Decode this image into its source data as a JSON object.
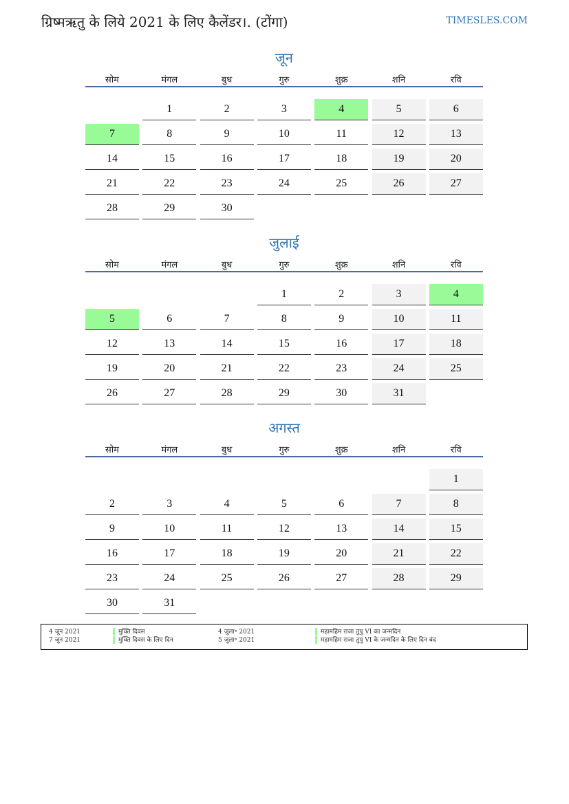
{
  "title": "ग्रिष्मऋतु के लिये 2021 के लिए कैलेंडर।. (टोंगा)",
  "site": "TIMESLES.COM",
  "weekdays": [
    "सोम",
    "मंगल",
    "बुध",
    "गुरु",
    "शुक्र",
    "शनि",
    "रवि"
  ],
  "colors": {
    "holiday": "#98fb98",
    "weekend": "#f2f2f2",
    "accent": "#2e75b6"
  },
  "months": [
    {
      "name": "जून",
      "weeks": [
        [
          null,
          1,
          2,
          3,
          4,
          5,
          6
        ],
        [
          7,
          8,
          9,
          10,
          11,
          12,
          13
        ],
        [
          14,
          15,
          16,
          17,
          18,
          19,
          20
        ],
        [
          21,
          22,
          23,
          24,
          25,
          26,
          27
        ],
        [
          28,
          29,
          30,
          null,
          null,
          null,
          null
        ]
      ],
      "holidays": [
        4,
        7
      ]
    },
    {
      "name": "जुलाई",
      "weeks": [
        [
          null,
          null,
          null,
          1,
          2,
          3,
          4
        ],
        [
          5,
          6,
          7,
          8,
          9,
          10,
          11
        ],
        [
          12,
          13,
          14,
          15,
          16,
          17,
          18
        ],
        [
          19,
          20,
          21,
          22,
          23,
          24,
          25
        ],
        [
          26,
          27,
          28,
          29,
          30,
          31,
          null
        ]
      ],
      "holidays": [
        4,
        5
      ]
    },
    {
      "name": "अगस्त",
      "weeks": [
        [
          null,
          null,
          null,
          null,
          null,
          null,
          1
        ],
        [
          2,
          3,
          4,
          5,
          6,
          7,
          8
        ],
        [
          9,
          10,
          11,
          12,
          13,
          14,
          15
        ],
        [
          16,
          17,
          18,
          19,
          20,
          21,
          22
        ],
        [
          23,
          24,
          25,
          26,
          27,
          28,
          29
        ],
        [
          30,
          31,
          null,
          null,
          null,
          null,
          null
        ]
      ],
      "holidays": []
    }
  ],
  "legend": [
    {
      "date": "4 जून 2021",
      "name": "मुक्ति दिवस"
    },
    {
      "date": "7 जून 2021",
      "name": "मुक्ति दिवस के लिए दिन"
    },
    {
      "date": "4 जुला॰ 2021",
      "name": "महामहिम राजा तुपु VI का जन्मदिन"
    },
    {
      "date": "5 जुला॰ 2021",
      "name": "महामहिम राजा तुपु VI के जन्मदिन के लिए दिन बंद"
    }
  ]
}
